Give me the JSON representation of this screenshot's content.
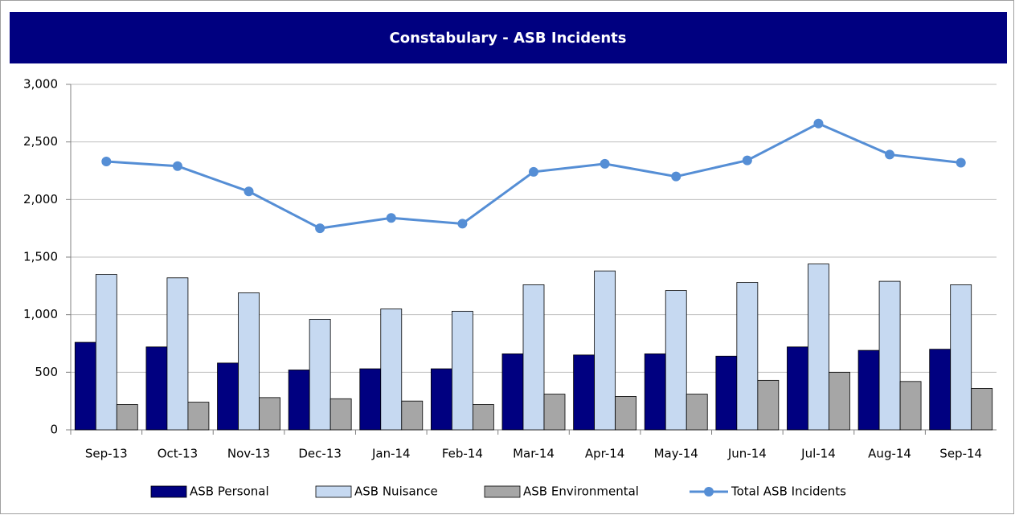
{
  "chart_data": {
    "type": "bar_line",
    "title": "Constabulary  - ASB Incidents",
    "categories": [
      "Sep-13",
      "Oct-13",
      "Nov-13",
      "Dec-13",
      "Jan-14",
      "Feb-14",
      "Mar-14",
      "Apr-14",
      "May-14",
      "Jun-14",
      "Jul-14",
      "Aug-14",
      "Sep-14"
    ],
    "series": [
      {
        "name": "ASB Personal",
        "type": "bar",
        "color": "#000080",
        "values": [
          760,
          720,
          580,
          520,
          530,
          530,
          660,
          650,
          660,
          640,
          720,
          690,
          700
        ]
      },
      {
        "name": "ASB Nuisance",
        "type": "bar",
        "color": "#c6d9f1",
        "values": [
          1350,
          1320,
          1190,
          960,
          1050,
          1030,
          1260,
          1380,
          1210,
          1280,
          1440,
          1290,
          1260
        ]
      },
      {
        "name": "ASB Environmental",
        "type": "bar",
        "color": "#a6a6a6",
        "values": [
          220,
          240,
          280,
          270,
          250,
          220,
          310,
          290,
          310,
          430,
          500,
          420,
          360
        ]
      },
      {
        "name": "Total ASB Incidents",
        "type": "line",
        "color": "#558ed5",
        "values": [
          2330,
          2290,
          2070,
          1750,
          1840,
          1790,
          2240,
          2310,
          2200,
          2340,
          2660,
          2390,
          2320
        ]
      }
    ],
    "ylim": [
      0,
      3000
    ],
    "yticks": [
      0,
      500,
      {
        "value": 1000,
        "label": "1,000"
      },
      {
        "value": 1500,
        "label": "1,500"
      },
      {
        "value": 2000,
        "label": "2,000"
      },
      {
        "value": 2500,
        "label": "2,500"
      },
      {
        "value": 3000,
        "label": "3,000"
      }
    ],
    "grid": true,
    "legend": "bottom"
  }
}
